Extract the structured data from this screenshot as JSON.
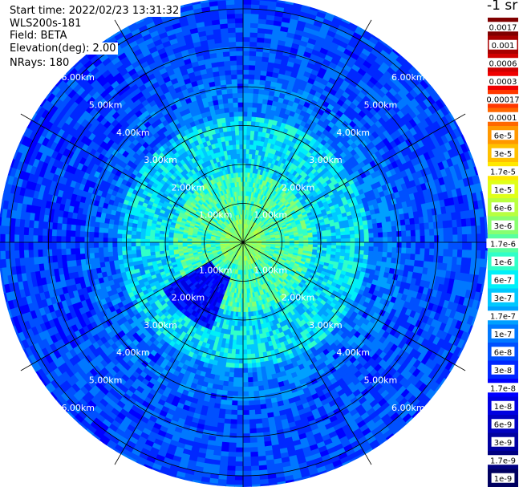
{
  "header": {
    "start_time": "Start time: 2022/02/23 13:31:32",
    "instrument": "WLS200s-181",
    "field": "Field: BETA",
    "elevation": "Elevation(deg): 2.00",
    "nrays": "NRays: 180"
  },
  "colorbar": {
    "units_label": "-1 sr",
    "labels": [
      "0.0017",
      "0.001",
      "0.0006",
      "0.0003",
      "0.00017",
      "0.0001",
      "6e-5",
      "3e-5",
      "1.7e-5",
      "1e-5",
      "6e-6",
      "3e-6",
      "1.7e-6",
      "1e-6",
      "6e-7",
      "3e-7",
      "1.7e-7",
      "1e-7",
      "6e-8",
      "3e-8",
      "1.7e-8",
      "1e-8",
      "6e-9",
      "3e-9",
      "1.7e-9",
      "1e-9"
    ],
    "colors": [
      "#800000",
      "#a80000",
      "#d00000",
      "#f00000",
      "#ff3800",
      "#ff6800",
      "#ff9800",
      "#ffc000",
      "#ffe800",
      "#e0ff18",
      "#b8ff40",
      "#88ff70",
      "#58ffa0",
      "#30ffc8",
      "#00f0f8",
      "#00c8ff",
      "#00a0ff",
      "#0078ff",
      "#0050ff",
      "#0028ff",
      "#0000ff",
      "#0000e0",
      "#0000c0",
      "#0000a0",
      "#000080",
      "#000060"
    ]
  },
  "chart_data": {
    "type": "heatmap",
    "projection": "polar-ppi",
    "n_rays": 180,
    "range_rings_km": [
      1,
      2,
      3,
      4,
      5,
      6
    ],
    "max_range_km": 6.3,
    "ring_labels": [
      "1.00km",
      "2.00km",
      "3.00km",
      "4.00km",
      "5.00km",
      "6.00km"
    ],
    "radial_spokes_deg": [
      0,
      30,
      60,
      90,
      120,
      150,
      180,
      210,
      240,
      270,
      300,
      330
    ],
    "grid": true,
    "typical_value_near_km_1": "1e-5",
    "typical_value_near_km_3": "1e-6",
    "typical_value_near_km_6": "3e-8"
  }
}
